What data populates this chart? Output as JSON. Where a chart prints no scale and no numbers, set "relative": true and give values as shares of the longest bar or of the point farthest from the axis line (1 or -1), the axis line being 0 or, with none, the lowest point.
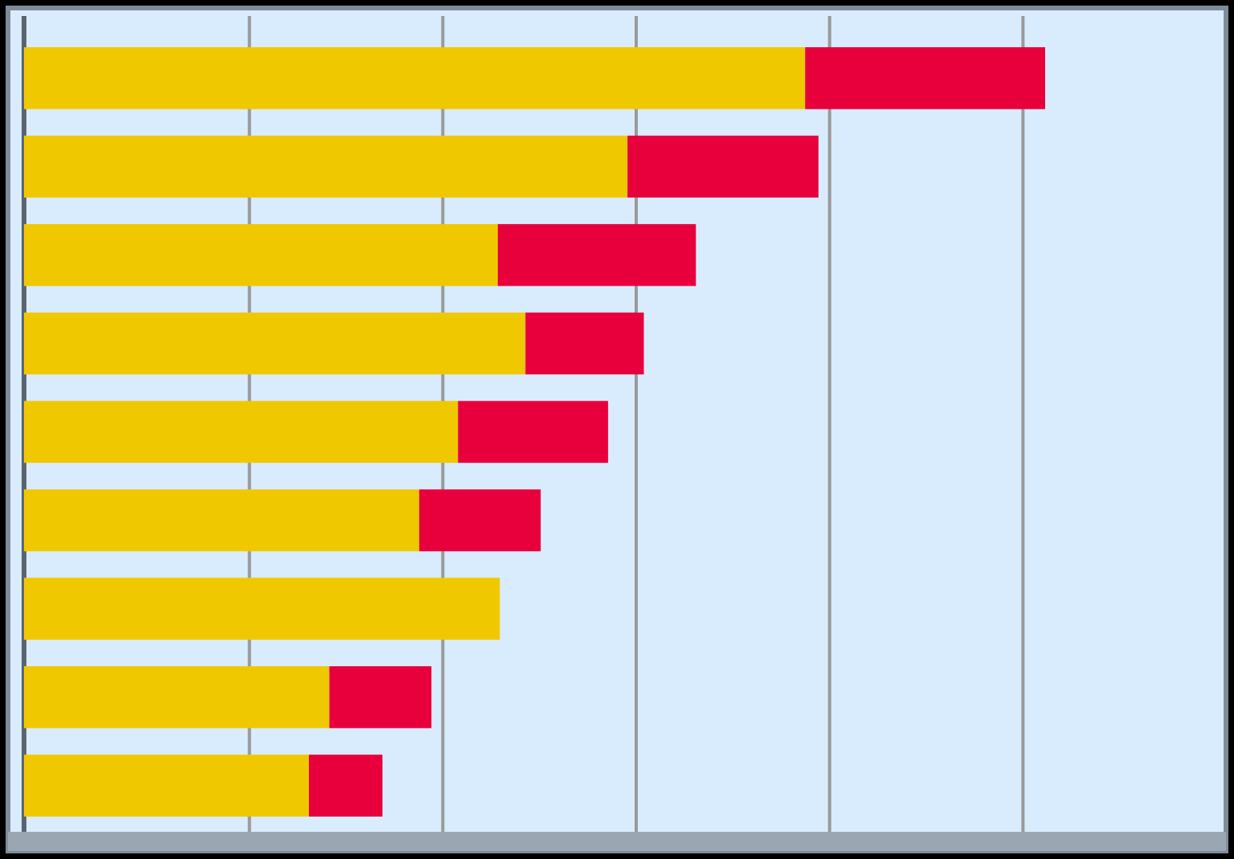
{
  "chart_data": {
    "type": "bar",
    "orientation": "horizontal",
    "stacked": true,
    "relative": true,
    "grid": "x",
    "categories": [
      null,
      null,
      null,
      null,
      null,
      null,
      null,
      null,
      null
    ],
    "series": [
      {
        "color": "#f0c800",
        "values": [
          0.765,
          0.591,
          0.464,
          0.491,
          0.425,
          0.387,
          0.466,
          0.299,
          0.279
        ]
      },
      {
        "color": "#e8003c",
        "values": [
          0.235,
          0.187,
          0.194,
          0.116,
          0.147,
          0.119,
          0,
          0.1,
          0.072
        ]
      }
    ]
  }
}
